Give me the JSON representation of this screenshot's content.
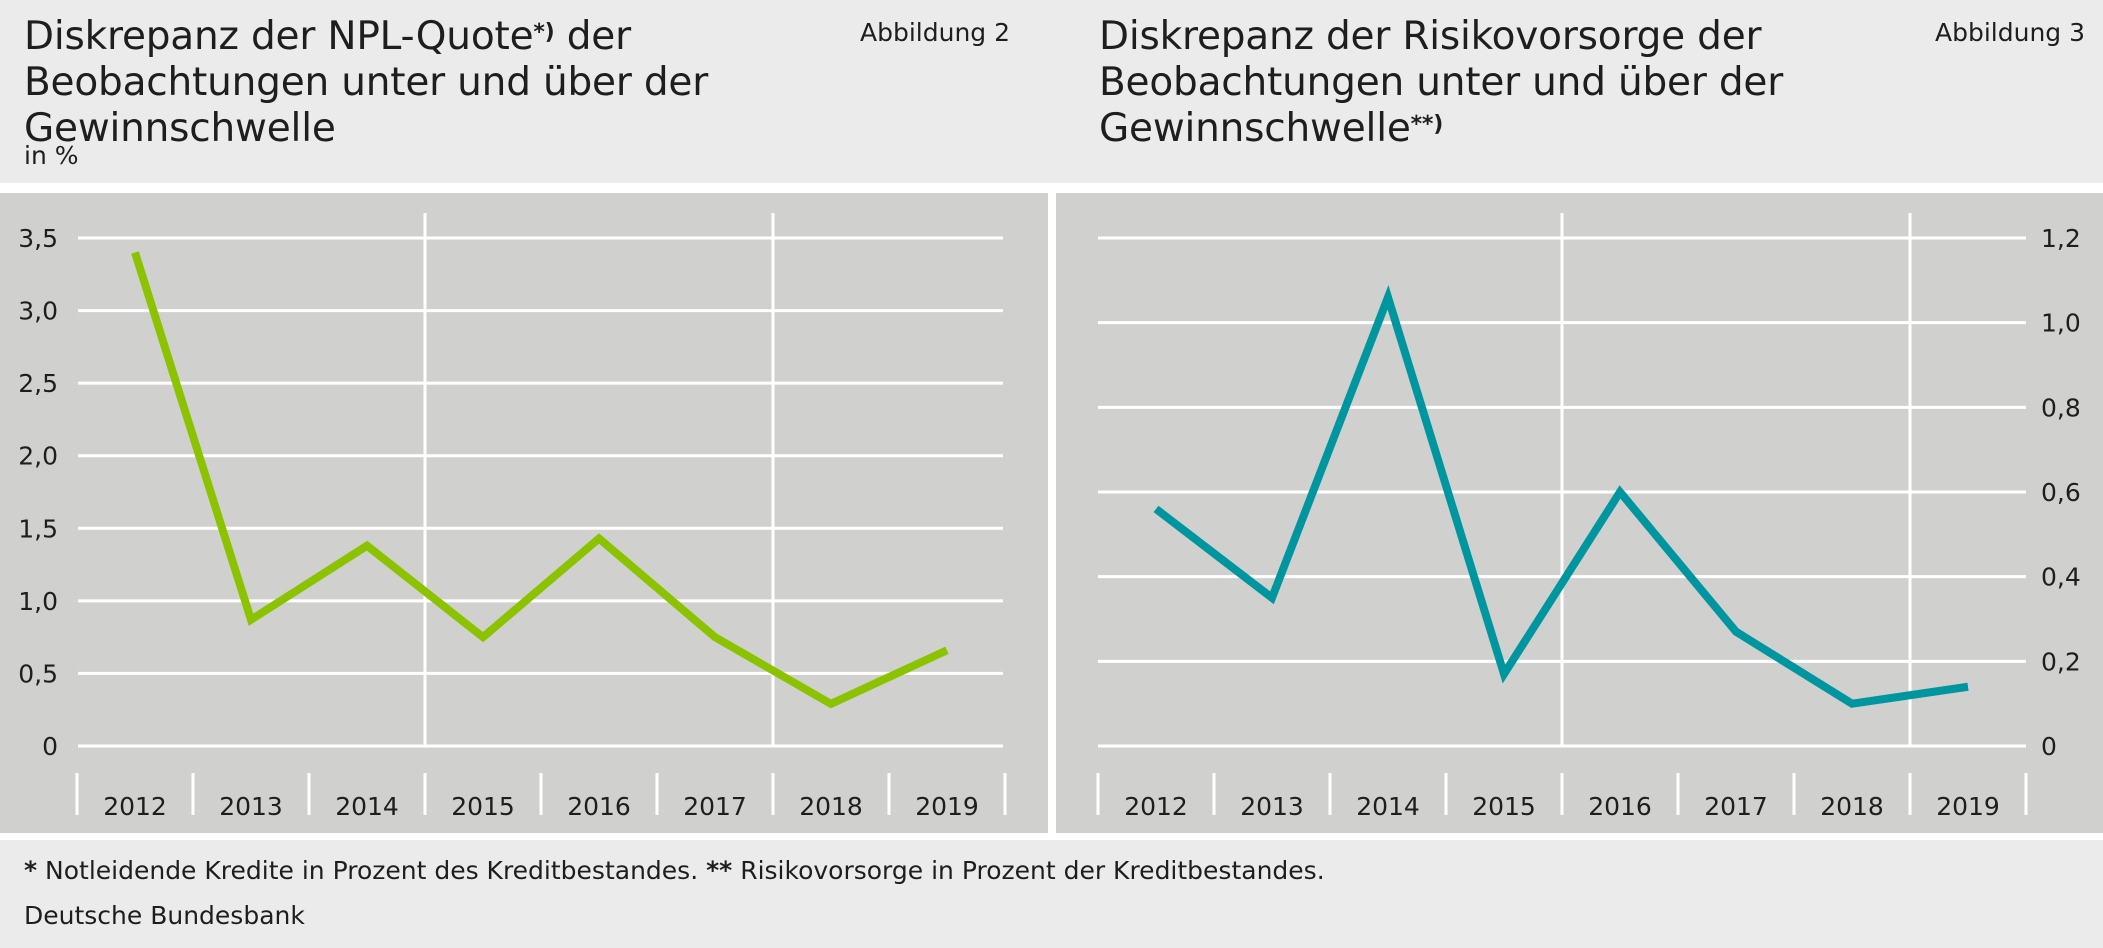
{
  "left": {
    "title_main": "Diskrepanz der NPL-Quote",
    "title_sup": "*)",
    "title_rest_line1": " der",
    "title_line2": "Beobachtungen unter und über der Gewinnschwelle",
    "figure_label": "Abbildung 2",
    "unit": "in %"
  },
  "right": {
    "title_line1": "Diskrepanz der Risikovorsorge der",
    "title_line2": "Beobachtungen unter und über der Gewinnschwelle",
    "title_sup": "**)",
    "figure_label": "Abbildung 3"
  },
  "footer": {
    "footnote_star1": "*",
    "footnote_text1": " Notleidende Kredite in Prozent des Kreditbestandes. ",
    "footnote_star2": "**",
    "footnote_text2": " Risikovorsorge in Prozent der Kreditbestandes.",
    "source": "Deutsche Bundesbank"
  },
  "colors": {
    "left_series": "#8cc300",
    "right_series": "#0096a0",
    "panel_bg": "#d0d0cf",
    "grid": "#ffffff"
  },
  "chart_data": [
    {
      "type": "line",
      "categories": [
        "2012",
        "2013",
        "2014",
        "2015",
        "2016",
        "2017",
        "2018",
        "2019"
      ],
      "values": [
        3.4,
        0.87,
        1.38,
        0.75,
        1.43,
        0.75,
        0.29,
        0.66
      ],
      "ylim": [
        0,
        3.5
      ],
      "yticks": [
        0,
        0.5,
        1.0,
        1.5,
        2.0,
        2.5,
        3.0,
        3.5
      ],
      "ytick_labels": [
        "0",
        "0,5",
        "1,0",
        "1,5",
        "2,0",
        "2,5",
        "3,0",
        "3,5"
      ],
      "yaxis_position": "left",
      "grid": true,
      "vertical_lines_after": [
        "2014",
        "2017"
      ]
    },
    {
      "type": "line",
      "categories": [
        "2012",
        "2013",
        "2014",
        "2015",
        "2016",
        "2017",
        "2018",
        "2019"
      ],
      "values": [
        0.56,
        0.35,
        1.06,
        0.17,
        0.6,
        0.27,
        0.1,
        0.14
      ],
      "ylim": [
        0,
        1.2
      ],
      "yticks": [
        0,
        0.2,
        0.4,
        0.6,
        0.8,
        1.0,
        1.2
      ],
      "ytick_labels": [
        "0",
        "0,2",
        "0,4",
        "0,6",
        "0,8",
        "1,0",
        "1,2"
      ],
      "yaxis_position": "right",
      "grid": true,
      "vertical_lines_after": [
        "2015",
        "2018"
      ]
    }
  ]
}
